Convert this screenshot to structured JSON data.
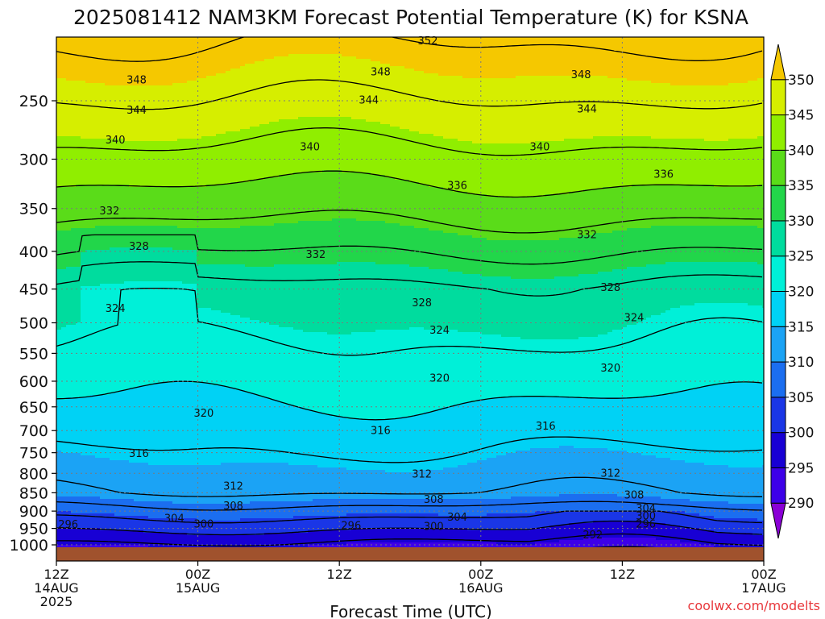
{
  "chart_data": {
    "type": "heatmap",
    "title": "2025081412 NAM3KM Forecast Potential Temperature (K) for KSNA",
    "xlabel": "Forecast Time (UTC)",
    "ylabel": "",
    "credit": "coolwx.com/modelts",
    "x_ticks": [
      {
        "hours": 0,
        "line1": "12Z",
        "line2": "14AUG",
        "line3": "2025"
      },
      {
        "hours": 12,
        "line1": "00Z",
        "line2": "15AUG",
        "line3": ""
      },
      {
        "hours": 24,
        "line1": "12Z",
        "line2": "",
        "line3": ""
      },
      {
        "hours": 36,
        "line1": "00Z",
        "line2": "16AUG",
        "line3": ""
      },
      {
        "hours": 48,
        "line1": "12Z",
        "line2": "",
        "line3": ""
      },
      {
        "hours": 60,
        "line1": "00Z",
        "line2": "17AUG",
        "line3": ""
      }
    ],
    "y_ticks": [
      250,
      300,
      350,
      400,
      450,
      500,
      550,
      600,
      650,
      700,
      750,
      800,
      850,
      900,
      950,
      1000
    ],
    "y_range": [
      200,
      1020
    ],
    "y_scale": "log-pressure (reversed)",
    "colorbar": {
      "levels": [
        290,
        295,
        300,
        305,
        310,
        315,
        320,
        325,
        330,
        335,
        340,
        345,
        350
      ],
      "labels": [
        "290",
        "295",
        "300",
        "305",
        "310",
        "315",
        "320",
        "325",
        "330",
        "335",
        "340",
        "345",
        "350"
      ],
      "colors": [
        "#8a00d6",
        "#3d00e8",
        "#1800d4",
        "#1a36e6",
        "#1b6ef0",
        "#1ba3f5",
        "#00d2f5",
        "#00f0d8",
        "#00dc9e",
        "#22d64a",
        "#5adc19",
        "#90ee00",
        "#d6ee00",
        "#f5c800"
      ]
    },
    "contour_levels": [
      292,
      296,
      300,
      304,
      308,
      312,
      316,
      320,
      324,
      328,
      332,
      336,
      340,
      344,
      348,
      352
    ],
    "contour_labels": [
      {
        "value": "352",
        "hours": 31.5,
        "p": 207
      },
      {
        "value": "348",
        "hours": 6.8,
        "p": 234
      },
      {
        "value": "348",
        "hours": 27.5,
        "p": 228
      },
      {
        "value": "348",
        "hours": 44.5,
        "p": 230
      },
      {
        "value": "344",
        "hours": 6.8,
        "p": 257
      },
      {
        "value": "344",
        "hours": 26.5,
        "p": 249
      },
      {
        "value": "344",
        "hours": 45.0,
        "p": 256
      },
      {
        "value": "340",
        "hours": 5.0,
        "p": 282
      },
      {
        "value": "340",
        "hours": 21.5,
        "p": 288
      },
      {
        "value": "340",
        "hours": 41.0,
        "p": 288
      },
      {
        "value": "336",
        "hours": 34.0,
        "p": 325
      },
      {
        "value": "336",
        "hours": 51.5,
        "p": 314
      },
      {
        "value": "332",
        "hours": 4.5,
        "p": 352
      },
      {
        "value": "332",
        "hours": 22.0,
        "p": 403
      },
      {
        "value": "332",
        "hours": 45.0,
        "p": 379
      },
      {
        "value": "328",
        "hours": 7.0,
        "p": 393
      },
      {
        "value": "328",
        "hours": 31.0,
        "p": 469
      },
      {
        "value": "328",
        "hours": 47.0,
        "p": 447
      },
      {
        "value": "324",
        "hours": 5.0,
        "p": 477
      },
      {
        "value": "324",
        "hours": 32.5,
        "p": 511
      },
      {
        "value": "324",
        "hours": 49.0,
        "p": 491
      },
      {
        "value": "320",
        "hours": 32.5,
        "p": 593
      },
      {
        "value": "320",
        "hours": 47.0,
        "p": 575
      },
      {
        "value": "320",
        "hours": 12.5,
        "p": 662
      },
      {
        "value": "316",
        "hours": 27.5,
        "p": 699
      },
      {
        "value": "316",
        "hours": 41.5,
        "p": 689
      },
      {
        "value": "316",
        "hours": 7.0,
        "p": 751
      },
      {
        "value": "312",
        "hours": 31.0,
        "p": 800
      },
      {
        "value": "312",
        "hours": 47.0,
        "p": 798
      },
      {
        "value": "312",
        "hours": 15.0,
        "p": 831
      },
      {
        "value": "308",
        "hours": 32.0,
        "p": 866
      },
      {
        "value": "308",
        "hours": 49.0,
        "p": 855
      },
      {
        "value": "308",
        "hours": 15.0,
        "p": 884
      },
      {
        "value": "304",
        "hours": 34.0,
        "p": 916
      },
      {
        "value": "304",
        "hours": 50.0,
        "p": 891
      },
      {
        "value": "304",
        "hours": 10.0,
        "p": 919
      },
      {
        "value": "300",
        "hours": 12.5,
        "p": 935
      },
      {
        "value": "300",
        "hours": 32.0,
        "p": 943
      },
      {
        "value": "300",
        "hours": 50.0,
        "p": 912
      },
      {
        "value": "296",
        "hours": 1.0,
        "p": 937
      },
      {
        "value": "296",
        "hours": 25.0,
        "p": 940
      },
      {
        "value": "296",
        "hours": 50.0,
        "p": 935
      },
      {
        "value": "292",
        "hours": 45.5,
        "p": 968
      }
    ]
  }
}
